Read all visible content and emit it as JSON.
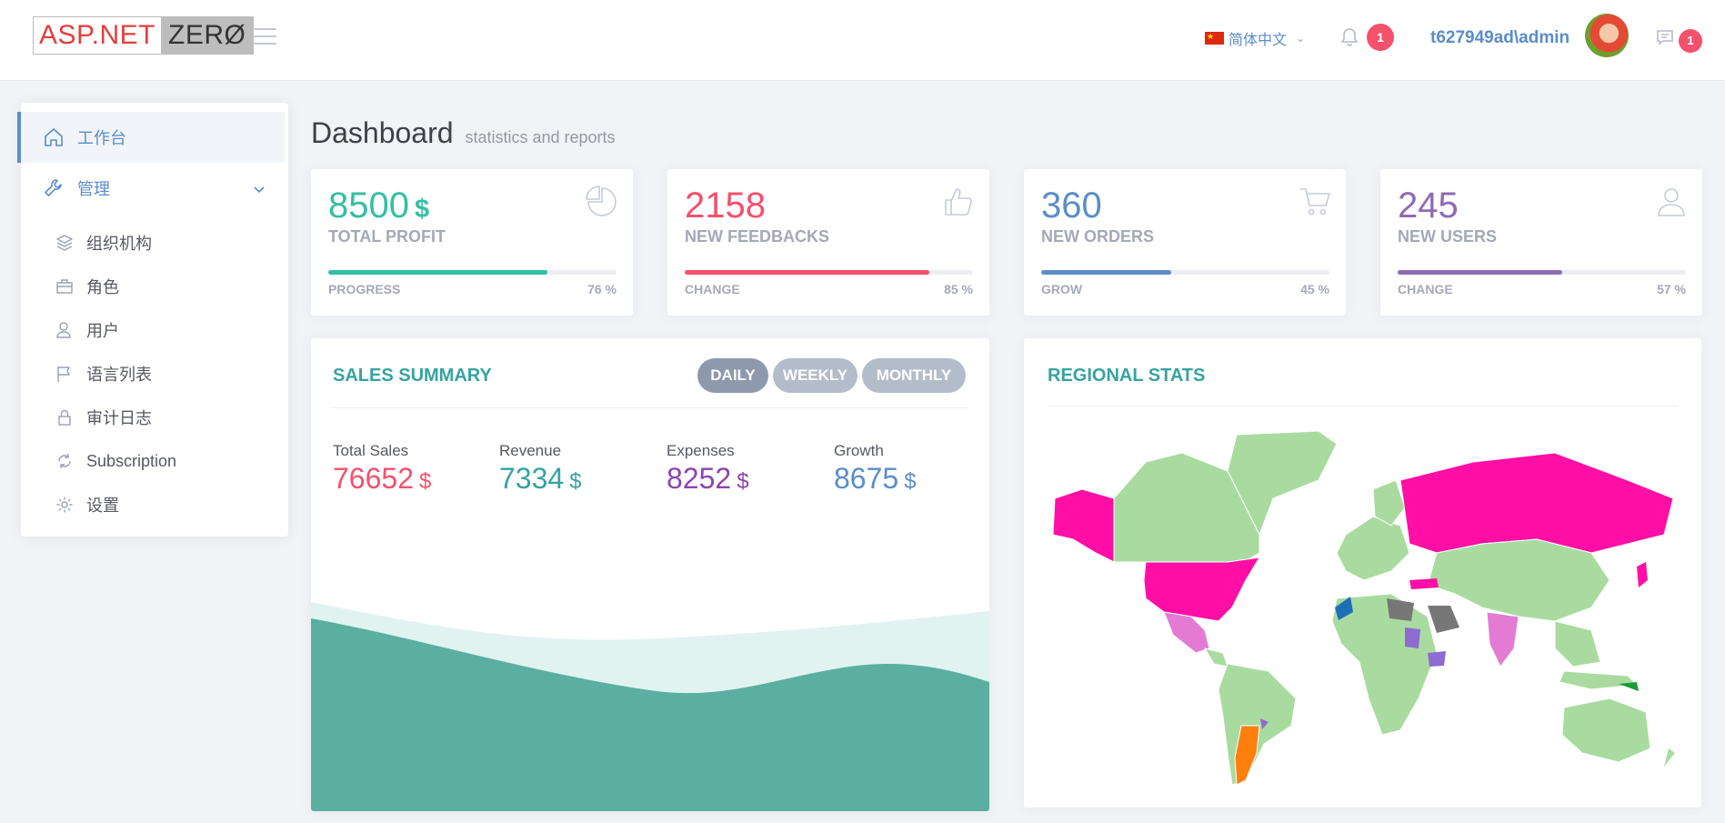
{
  "header": {
    "logo_part1": "ASP.NET",
    "logo_part2": "ZERØ",
    "language": "简体中文",
    "notification_count": "1",
    "username": "t627949ad\\admin",
    "chat_count": "1"
  },
  "sidebar": {
    "items": [
      {
        "label": "工作台",
        "icon": "home-icon"
      },
      {
        "label": "管理",
        "icon": "wrench-icon"
      }
    ],
    "sub_items": [
      {
        "label": "组织机构",
        "icon": "layers-icon"
      },
      {
        "label": "角色",
        "icon": "briefcase-icon"
      },
      {
        "label": "用户",
        "icon": "user-icon"
      },
      {
        "label": "语言列表",
        "icon": "flag-icon"
      },
      {
        "label": "审计日志",
        "icon": "lock-icon"
      },
      {
        "label": "Subscription",
        "icon": "refresh-icon"
      },
      {
        "label": "设置",
        "icon": "gear-icon"
      }
    ]
  },
  "page": {
    "title": "Dashboard",
    "subtitle": "statistics and reports"
  },
  "stats": [
    {
      "value": "8500",
      "unit": "$",
      "label": "TOTAL PROFIT",
      "foot_label": "PROGRESS",
      "percent": "76 %",
      "fill": 76,
      "color": "#34bfa3",
      "icon": "pie-chart-icon"
    },
    {
      "value": "2158",
      "unit": "",
      "label": "NEW FEEDBACKS",
      "foot_label": "CHANGE",
      "percent": "85 %",
      "fill": 85,
      "color": "#f4516c",
      "icon": "thumbs-up-icon"
    },
    {
      "value": "360",
      "unit": "",
      "label": "NEW ORDERS",
      "foot_label": "GROW",
      "percent": "45 %",
      "fill": 45,
      "color": "#5b8dc9",
      "icon": "shopping-cart-icon"
    },
    {
      "value": "245",
      "unit": "",
      "label": "NEW USERS",
      "foot_label": "CHANGE",
      "percent": "57 %",
      "fill": 57,
      "color": "#8e6bb3",
      "icon": "user-outline-icon"
    }
  ],
  "sales": {
    "title": "SALES SUMMARY",
    "buttons": [
      "DAILY",
      "WEEKLY",
      "MONTHLY"
    ],
    "active_button": "DAILY",
    "metrics": [
      {
        "label": "Total Sales",
        "value": "76652",
        "unit": "$",
        "color": "#f4516c"
      },
      {
        "label": "Revenue",
        "value": "7334",
        "unit": "$",
        "color": "#36a3a0"
      },
      {
        "label": "Expenses",
        "value": "8252",
        "unit": "$",
        "color": "#8e44ad"
      },
      {
        "label": "Growth",
        "value": "8675",
        "unit": "$",
        "color": "#5b8dc9"
      }
    ]
  },
  "regional": {
    "title": "REGIONAL STATS"
  },
  "colors": {
    "accent": "#5b8dc9",
    "teal": "#36a3a0",
    "map_land": "#a9dba0",
    "map_highlight": "#ff0fa5"
  }
}
